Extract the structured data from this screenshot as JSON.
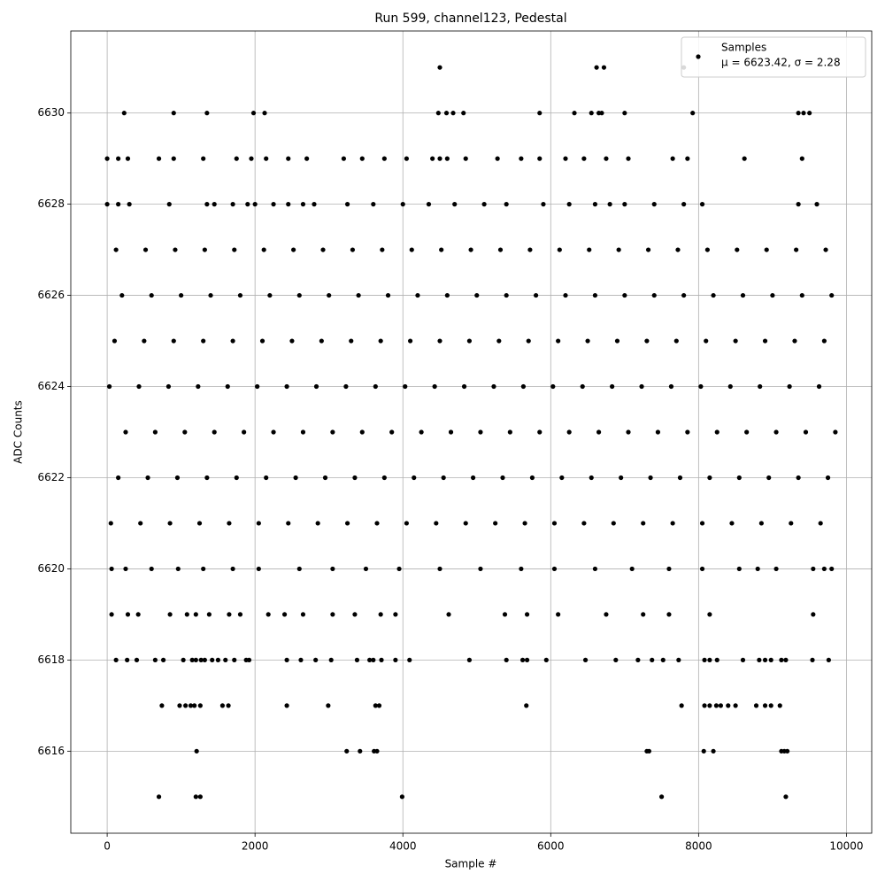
{
  "chart_data": {
    "type": "scatter",
    "title": "Run 599, channel123, Pedestal",
    "x_label": "Sample #",
    "y_label": "ADC Counts",
    "xlim": [
      -492,
      10342
    ],
    "ylim": [
      6614.2,
      6631.8
    ],
    "xticks": [
      0,
      2000,
      4000,
      6000,
      8000,
      10000
    ],
    "yticks": [
      6616,
      6618,
      6620,
      6622,
      6624,
      6626,
      6628,
      6630
    ],
    "grid": true,
    "legend_loc": "upper right",
    "legend_note": "μ = 6623.42, σ = 2.28",
    "series": [
      {
        "name": "Samples",
        "color": "#000000",
        "x": [
          700,
          1200,
          1260,
          3990,
          7500,
          9180,
          1210,
          3240,
          3420,
          3610,
          3650,
          7300,
          7330,
          8070,
          8200,
          9120,
          9160,
          9200,
          740,
          980,
          1060,
          1130,
          1180,
          1260,
          1560,
          1640,
          2430,
          2990,
          3630,
          3680,
          5670,
          7770,
          8080,
          8150,
          8240,
          8300,
          8400,
          8500,
          8780,
          8900,
          8980,
          9100,
          120,
          270,
          400,
          650,
          760,
          1030,
          1150,
          1200,
          1270,
          1320,
          1420,
          1500,
          1600,
          1720,
          1880,
          1920,
          2430,
          2620,
          2820,
          3030,
          3380,
          3550,
          3600,
          3710,
          3900,
          4090,
          4900,
          5400,
          5620,
          5680,
          5940,
          6470,
          6880,
          7180,
          7370,
          7520,
          7730,
          8080,
          8150,
          8250,
          8600,
          8820,
          8900,
          8980,
          9120,
          9180,
          9540,
          9760,
          60,
          280,
          420,
          850,
          1080,
          1200,
          1380,
          1650,
          1800,
          2180,
          2400,
          2650,
          3050,
          3350,
          3700,
          3900,
          4620,
          5380,
          5680,
          6100,
          6750,
          7250,
          7600,
          8150,
          9550,
          60,
          250,
          600,
          960,
          1300,
          1700,
          2050,
          2600,
          3050,
          3500,
          3950,
          4500,
          5050,
          5600,
          6050,
          6600,
          7100,
          7600,
          8050,
          8550,
          8800,
          9050,
          9550,
          9700,
          9800,
          50,
          450,
          850,
          1250,
          1650,
          2050,
          2450,
          2850,
          3250,
          3650,
          4050,
          4450,
          4850,
          5250,
          5650,
          6050,
          6450,
          6850,
          7250,
          7650,
          8050,
          8450,
          8850,
          9250,
          9650,
          150,
          550,
          950,
          1350,
          1750,
          2150,
          2550,
          2950,
          3350,
          3750,
          4150,
          4550,
          4950,
          5350,
          5750,
          6150,
          6550,
          6950,
          7350,
          7750,
          8150,
          8550,
          8950,
          9350,
          9750,
          250,
          650,
          1050,
          1450,
          1850,
          2250,
          2650,
          3050,
          3450,
          3850,
          4250,
          4650,
          5050,
          5450,
          5850,
          6250,
          6650,
          7050,
          7450,
          7850,
          8250,
          8650,
          9050,
          9450,
          9850,
          30,
          430,
          830,
          1230,
          1630,
          2030,
          2430,
          2830,
          3230,
          3630,
          4030,
          4430,
          4830,
          5230,
          5630,
          6030,
          6430,
          6830,
          7230,
          7630,
          8030,
          8430,
          8830,
          9230,
          9630,
          100,
          500,
          900,
          1300,
          1700,
          2100,
          2500,
          2900,
          3300,
          3700,
          4100,
          4500,
          4900,
          5300,
          5700,
          6100,
          6500,
          6900,
          7300,
          7700,
          8100,
          8500,
          8900,
          9300,
          9700,
          200,
          600,
          1000,
          1400,
          1800,
          2200,
          2600,
          3000,
          3400,
          3800,
          4200,
          4600,
          5000,
          5400,
          5800,
          6200,
          6600,
          7000,
          7400,
          7800,
          8200,
          8600,
          9000,
          9400,
          9800,
          120,
          520,
          920,
          1320,
          1720,
          2120,
          2520,
          2920,
          3320,
          3720,
          4120,
          4520,
          4920,
          5320,
          5720,
          6120,
          6520,
          6920,
          7320,
          7720,
          8120,
          8520,
          8920,
          9320,
          9720,
          0,
          150,
          300,
          840,
          1350,
          1450,
          1700,
          1900,
          2000,
          2250,
          2450,
          2650,
          2800,
          3250,
          3600,
          4000,
          4350,
          4700,
          5100,
          5400,
          5900,
          6250,
          6600,
          6800,
          7000,
          7400,
          7800,
          8050,
          9350,
          9600,
          0,
          150,
          280,
          700,
          900,
          1300,
          1750,
          1950,
          2150,
          2450,
          2700,
          3200,
          3450,
          3750,
          4050,
          4400,
          4500,
          4600,
          4850,
          5280,
          5600,
          5850,
          6200,
          6450,
          6750,
          7050,
          7650,
          7850,
          8620,
          9400,
          4500,
          6620,
          6720,
          7800,
          230,
          900,
          1350,
          1980,
          2130,
          4480,
          4590,
          4680,
          4820,
          5850,
          6320,
          6550,
          6650,
          6690,
          7000,
          7920,
          9350,
          9420,
          9500
        ],
        "values": [
          6615,
          6615,
          6615,
          6615,
          6615,
          6615,
          6616,
          6616,
          6616,
          6616,
          6616,
          6616,
          6616,
          6616,
          6616,
          6616,
          6616,
          6616,
          6617,
          6617,
          6617,
          6617,
          6617,
          6617,
          6617,
          6617,
          6617,
          6617,
          6617,
          6617,
          6617,
          6617,
          6617,
          6617,
          6617,
          6617,
          6617,
          6617,
          6617,
          6617,
          6617,
          6617,
          6618,
          6618,
          6618,
          6618,
          6618,
          6618,
          6618,
          6618,
          6618,
          6618,
          6618,
          6618,
          6618,
          6618,
          6618,
          6618,
          6618,
          6618,
          6618,
          6618,
          6618,
          6618,
          6618,
          6618,
          6618,
          6618,
          6618,
          6618,
          6618,
          6618,
          6618,
          6618,
          6618,
          6618,
          6618,
          6618,
          6618,
          6618,
          6618,
          6618,
          6618,
          6618,
          6618,
          6618,
          6618,
          6618,
          6618,
          6618,
          6619,
          6619,
          6619,
          6619,
          6619,
          6619,
          6619,
          6619,
          6619,
          6619,
          6619,
          6619,
          6619,
          6619,
          6619,
          6619,
          6619,
          6619,
          6619,
          6619,
          6619,
          6619,
          6619,
          6619,
          6619,
          6620,
          6620,
          6620,
          6620,
          6620,
          6620,
          6620,
          6620,
          6620,
          6620,
          6620,
          6620,
          6620,
          6620,
          6620,
          6620,
          6620,
          6620,
          6620,
          6620,
          6620,
          6620,
          6620,
          6620,
          6620,
          6621,
          6621,
          6621,
          6621,
          6621,
          6621,
          6621,
          6621,
          6621,
          6621,
          6621,
          6621,
          6621,
          6621,
          6621,
          6621,
          6621,
          6621,
          6621,
          6621,
          6621,
          6621,
          6621,
          6621,
          6621,
          6622,
          6622,
          6622,
          6622,
          6622,
          6622,
          6622,
          6622,
          6622,
          6622,
          6622,
          6622,
          6622,
          6622,
          6622,
          6622,
          6622,
          6622,
          6622,
          6622,
          6622,
          6622,
          6622,
          6622,
          6622,
          6623,
          6623,
          6623,
          6623,
          6623,
          6623,
          6623,
          6623,
          6623,
          6623,
          6623,
          6623,
          6623,
          6623,
          6623,
          6623,
          6623,
          6623,
          6623,
          6623,
          6623,
          6623,
          6623,
          6623,
          6623,
          6624,
          6624,
          6624,
          6624,
          6624,
          6624,
          6624,
          6624,
          6624,
          6624,
          6624,
          6624,
          6624,
          6624,
          6624,
          6624,
          6624,
          6624,
          6624,
          6624,
          6624,
          6624,
          6624,
          6624,
          6624,
          6625,
          6625,
          6625,
          6625,
          6625,
          6625,
          6625,
          6625,
          6625,
          6625,
          6625,
          6625,
          6625,
          6625,
          6625,
          6625,
          6625,
          6625,
          6625,
          6625,
          6625,
          6625,
          6625,
          6625,
          6625,
          6626,
          6626,
          6626,
          6626,
          6626,
          6626,
          6626,
          6626,
          6626,
          6626,
          6626,
          6626,
          6626,
          6626,
          6626,
          6626,
          6626,
          6626,
          6626,
          6626,
          6626,
          6626,
          6626,
          6626,
          6626,
          6627,
          6627,
          6627,
          6627,
          6627,
          6627,
          6627,
          6627,
          6627,
          6627,
          6627,
          6627,
          6627,
          6627,
          6627,
          6627,
          6627,
          6627,
          6627,
          6627,
          6627,
          6627,
          6627,
          6627,
          6627,
          6628,
          6628,
          6628,
          6628,
          6628,
          6628,
          6628,
          6628,
          6628,
          6628,
          6628,
          6628,
          6628,
          6628,
          6628,
          6628,
          6628,
          6628,
          6628,
          6628,
          6628,
          6628,
          6628,
          6628,
          6628,
          6628,
          6628,
          6628,
          6628,
          6628,
          6629,
          6629,
          6629,
          6629,
          6629,
          6629,
          6629,
          6629,
          6629,
          6629,
          6629,
          6629,
          6629,
          6629,
          6629,
          6629,
          6629,
          6629,
          6629,
          6629,
          6629,
          6629,
          6629,
          6629,
          6629,
          6629,
          6629,
          6629,
          6629,
          6629,
          6631,
          6631,
          6631,
          6631,
          6630,
          6630,
          6630,
          6630,
          6630,
          6630,
          6630,
          6630,
          6630,
          6630,
          6630,
          6630,
          6630,
          6630,
          6630,
          6630,
          6630,
          6630,
          6630
        ]
      }
    ]
  }
}
